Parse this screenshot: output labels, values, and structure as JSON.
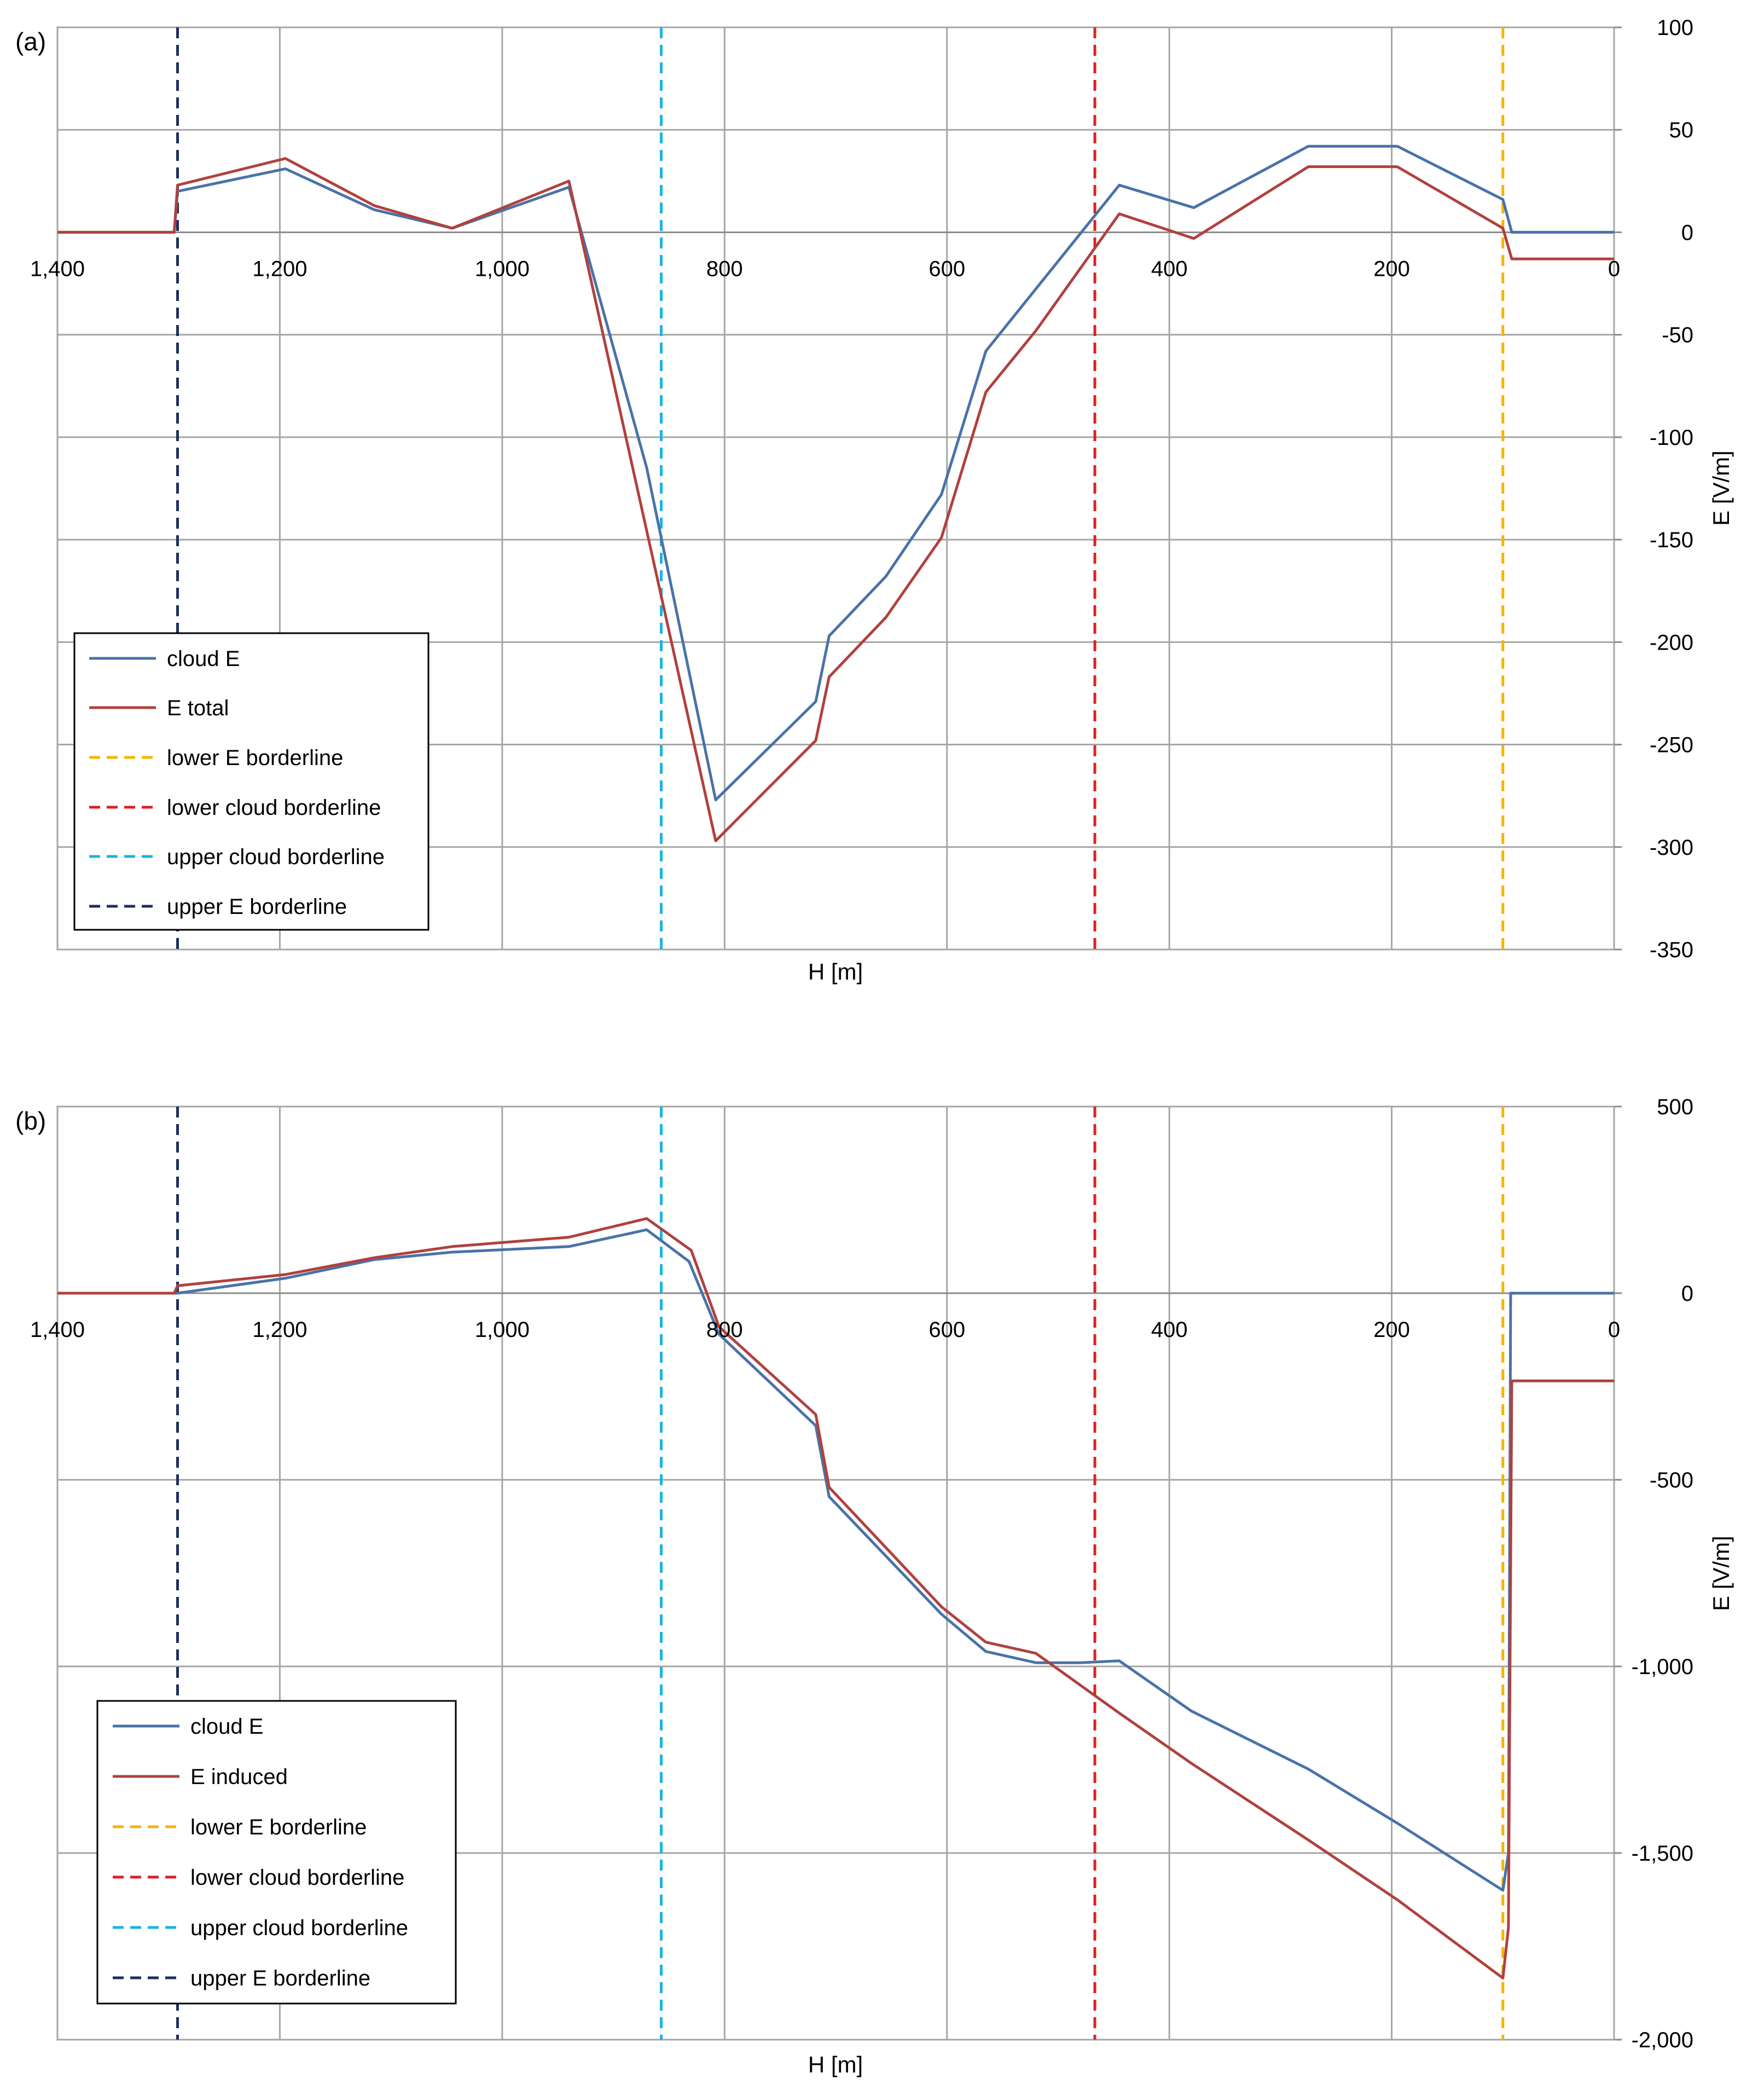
{
  "chart_data": [
    {
      "panel": "(a)",
      "type": "line",
      "xlabel": "H [m]",
      "ylabel": "E [V/m]",
      "xlim": [
        1400,
        0
      ],
      "ylim": [
        -350,
        100
      ],
      "xticks": [
        1400,
        1200,
        1000,
        800,
        600,
        400,
        200,
        0
      ],
      "xtick_labels": [
        "1,400",
        "1,200",
        "1,000",
        "800",
        "600",
        "400",
        "200",
        "0"
      ],
      "yticks": [
        100,
        50,
        0,
        -50,
        -100,
        -150,
        -200,
        -250,
        -300,
        -350
      ],
      "ytick_labels": [
        "100",
        "50",
        "0",
        "-50",
        "-100",
        "-150",
        "-200",
        "-250",
        "-300",
        "-350"
      ],
      "series": [
        {
          "name": "cloud E",
          "color": "#4a72a8",
          "dash": "solid",
          "x": [
            1400,
            1295,
            1292,
            1195,
            1115,
            1045,
            940,
            870,
            808,
            718,
            706,
            655,
            605,
            565,
            445,
            378,
            275,
            195,
            100,
            92,
            0
          ],
          "y": [
            0,
            0,
            20,
            31,
            11,
            2,
            22,
            -115,
            -277,
            -229,
            -197,
            -168,
            -128,
            -58,
            23,
            12,
            42,
            42,
            16,
            0,
            0
          ]
        },
        {
          "name": "E total",
          "color": "#b0413e",
          "dash": "solid",
          "x": [
            1400,
            1295,
            1292,
            1195,
            1115,
            1045,
            940,
            808,
            718,
            706,
            655,
            605,
            565,
            520,
            445,
            378,
            275,
            195,
            100,
            92,
            0
          ],
          "y": [
            0,
            0,
            23,
            36,
            13,
            2,
            25,
            -297,
            -248,
            -217,
            -188,
            -149,
            -78,
            -48,
            9,
            -3,
            32,
            32,
            2,
            -13,
            -13
          ]
        },
        {
          "name": "lower E borderline",
          "color": "#f5b400",
          "dash": "dashed",
          "x": [
            100,
            100
          ],
          "y": [
            100,
            -350
          ]
        },
        {
          "name": "lower cloud borderline",
          "color": "#e02020",
          "dash": "dashed",
          "x": [
            467,
            467
          ],
          "y": [
            100,
            -350
          ]
        },
        {
          "name": "upper cloud borderline",
          "color": "#19b3e6",
          "dash": "dashed",
          "x": [
            857,
            857
          ],
          "y": [
            100,
            -350
          ]
        },
        {
          "name": "upper E borderline",
          "color": "#1c2f5e",
          "dash": "dashed",
          "x": [
            1292,
            1292
          ],
          "y": [
            100,
            -350
          ]
        }
      ]
    },
    {
      "panel": "(b)",
      "type": "line",
      "xlabel": "H [m]",
      "ylabel": "E [V/m]",
      "xlim": [
        1400,
        0
      ],
      "ylim": [
        -2000,
        500
      ],
      "xticks": [
        1400,
        1200,
        1000,
        800,
        600,
        400,
        200,
        0
      ],
      "xtick_labels": [
        "1,400",
        "1,200",
        "1,000",
        "800",
        "600",
        "400",
        "200",
        "0"
      ],
      "yticks": [
        500,
        0,
        -500,
        -1000,
        -1500,
        -2000
      ],
      "ytick_labels": [
        "500",
        "0",
        "-500",
        "-1,000",
        "-1,500",
        "-2,000"
      ],
      "series": [
        {
          "name": "cloud E",
          "color": "#4a72a8",
          "dash": "solid",
          "x": [
            1400,
            1295,
            1292,
            1195,
            1115,
            1045,
            940,
            870,
            832,
            805,
            718,
            706,
            605,
            565,
            520,
            480,
            445,
            380,
            275,
            195,
            100,
            95,
            93,
            0
          ],
          "y": [
            0,
            0,
            0,
            40,
            90,
            110,
            125,
            170,
            85,
            -110,
            -355,
            -545,
            -860,
            -960,
            -990,
            -990,
            -985,
            -1120,
            -1275,
            -1420,
            -1600,
            -1500,
            0,
            0
          ]
        },
        {
          "name": "E induced",
          "color": "#b0413e",
          "dash": "solid",
          "x": [
            1400,
            1295,
            1292,
            1195,
            1115,
            1045,
            940,
            870,
            830,
            805,
            718,
            706,
            605,
            565,
            520,
            445,
            380,
            275,
            195,
            100,
            95,
            92,
            0
          ],
          "y": [
            0,
            0,
            20,
            50,
            95,
            125,
            150,
            200,
            115,
            -90,
            -325,
            -520,
            -840,
            -935,
            -965,
            -1125,
            -1260,
            -1465,
            -1625,
            -1835,
            -1700,
            -235,
            -235
          ]
        },
        {
          "name": "lower E borderline",
          "color": "#f5b400",
          "dash": "dashed",
          "x": [
            100,
            100
          ],
          "y": [
            500,
            -2000
          ]
        },
        {
          "name": "lower cloud borderline",
          "color": "#e02020",
          "dash": "dashed",
          "x": [
            467,
            467
          ],
          "y": [
            500,
            -2000
          ]
        },
        {
          "name": "upper cloud borderline",
          "color": "#19b3e6",
          "dash": "dashed",
          "x": [
            857,
            857
          ],
          "y": [
            500,
            -2000
          ]
        },
        {
          "name": "upper E borderline",
          "color": "#1c2f5e",
          "dash": "dashed",
          "x": [
            1292,
            1292
          ],
          "y": [
            500,
            -2000
          ]
        }
      ]
    }
  ]
}
